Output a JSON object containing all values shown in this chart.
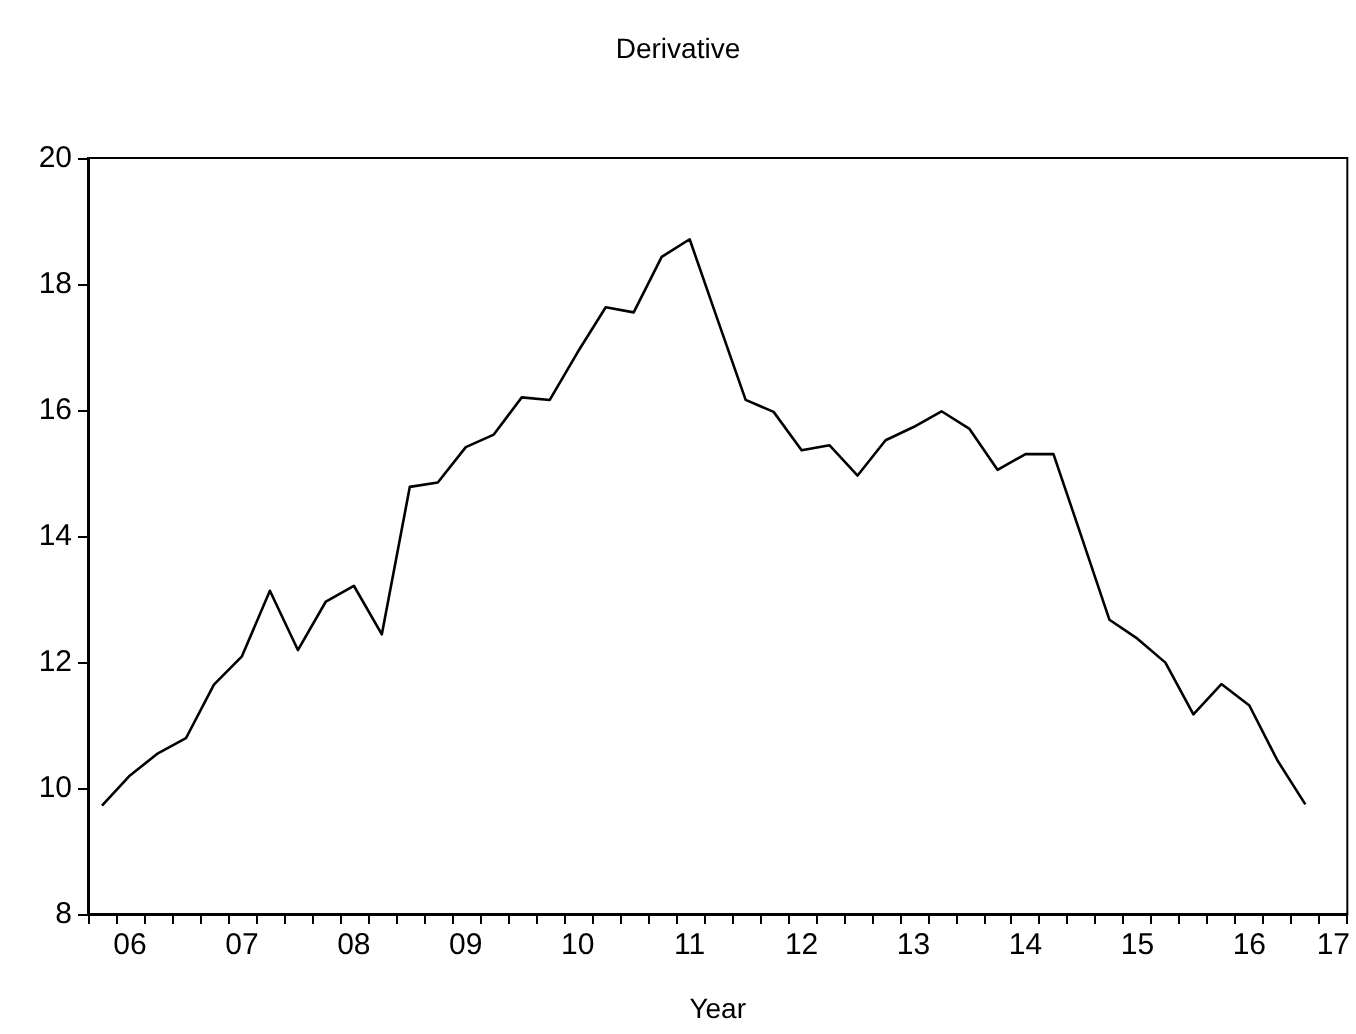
{
  "chart_data": {
    "type": "line",
    "title": "Derivative",
    "xlabel": "Year",
    "categories": [
      null,
      "06",
      null,
      null,
      null,
      "07",
      null,
      null,
      null,
      "08",
      null,
      null,
      null,
      "09",
      null,
      null,
      null,
      "10",
      null,
      null,
      null,
      "11",
      null,
      null,
      null,
      "12",
      null,
      null,
      null,
      "13",
      null,
      null,
      null,
      "14",
      null,
      null,
      null,
      "15",
      null,
      null,
      null,
      "16",
      null,
      null,
      "17"
    ],
    "series": [
      {
        "color": "#000000",
        "values": [
          9.72,
          10.2,
          10.55,
          10.79,
          11.64,
          12.09,
          13.13,
          12.19,
          12.96,
          13.21,
          12.44,
          14.78,
          14.85,
          15.41,
          15.61,
          16.2,
          16.16,
          16.92,
          17.63,
          17.55,
          18.43,
          18.71,
          17.43,
          16.16,
          15.97,
          15.36,
          15.44,
          14.96,
          15.52,
          15.73,
          15.98,
          15.7,
          15.05,
          15.3,
          15.3,
          13.99,
          12.67,
          12.37,
          11.99,
          11.17,
          11.65,
          11.31,
          10.44,
          9.74,
          null
        ]
      }
    ],
    "ylim": [
      8,
      20
    ],
    "yticks": [
      8,
      10,
      12,
      14,
      16,
      18,
      20
    ],
    "grid": false,
    "marker": "none",
    "line_style": "solid"
  }
}
